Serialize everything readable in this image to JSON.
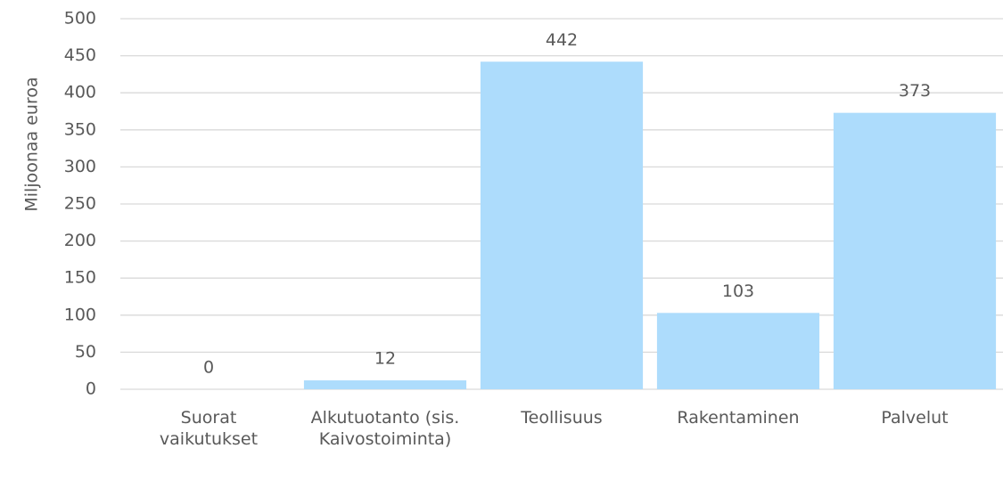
{
  "chart_data": {
    "type": "bar",
    "y_axis_label": "Miljoonaa euroa",
    "categories": [
      "Suorat vaikutukset",
      "Alkutuotanto (sis. Kaivostoiminta)",
      "Teollisuus",
      "Rakentaminen",
      "Palvelut"
    ],
    "values": [
      0,
      12,
      442,
      103,
      373
    ],
    "color": "#addcfc",
    "ylim": [
      0,
      500
    ],
    "yticks": [
      0,
      50,
      100,
      150,
      200,
      250,
      300,
      350,
      400,
      450,
      500
    ],
    "grid": true
  }
}
